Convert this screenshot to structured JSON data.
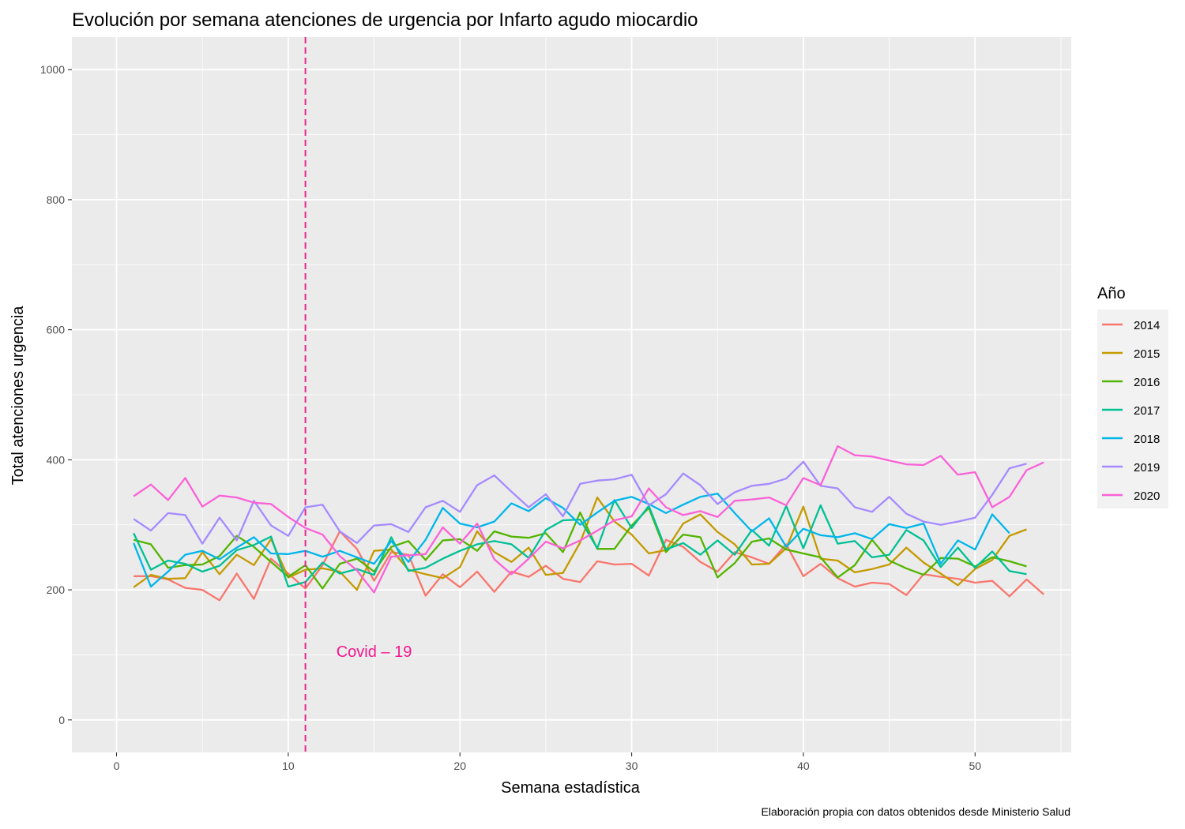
{
  "chart_data": {
    "type": "line",
    "title": "Evolución por semana atenciones de urgencia por Infarto agudo miocardio",
    "xlabel": "Semana estadística",
    "ylabel": "Total atenciones urgencia",
    "caption": "Elaboración propia con datos obtenidos desde Ministerio Salud",
    "xlim": [
      -2.6,
      55.6
    ],
    "ylim": [
      -50,
      1050
    ],
    "x_ticks": [
      0,
      10,
      20,
      30,
      40,
      50
    ],
    "y_ticks": [
      0,
      200,
      400,
      600,
      800,
      1000
    ],
    "grid": true,
    "legend_title": "Año",
    "legend_position": "right",
    "vline": {
      "x": 11,
      "color": "#e7298a",
      "style": "dashed"
    },
    "annotation": {
      "text": "Covid – 19",
      "x": 15,
      "y": 97,
      "color": "#f2178d"
    },
    "series": [
      {
        "name": "2014",
        "color": "#f8766d",
        "values": [
          221,
          221,
          216,
          203,
          200,
          184,
          225,
          186,
          248,
          225,
          202,
          238,
          290,
          263,
          214,
          258,
          254,
          191,
          224,
          204,
          228,
          197,
          228,
          220,
          237,
          217,
          212,
          244,
          239,
          240,
          222,
          277,
          266,
          243,
          228,
          258,
          250,
          240,
          270,
          221,
          240,
          218,
          205,
          211,
          209,
          192,
          224,
          220,
          217,
          211,
          214,
          190,
          216,
          193
        ]
      },
      {
        "name": "2015",
        "color": "#c49a00",
        "values": [
          204,
          223,
          217,
          218,
          258,
          224,
          254,
          238,
          278,
          219,
          231,
          233,
          228,
          200,
          260,
          262,
          231,
          224,
          218,
          235,
          290,
          258,
          243,
          265,
          223,
          226,
          273,
          342,
          305,
          285,
          256,
          261,
          302,
          316,
          289,
          270,
          239,
          240,
          264,
          328,
          248,
          245,
          227,
          232,
          239,
          265,
          242,
          225,
          207,
          232,
          246,
          283,
          293
        ]
      },
      {
        "name": "2016",
        "color": "#53b400",
        "values": [
          277,
          270,
          234,
          238,
          239,
          252,
          283,
          266,
          243,
          220,
          238,
          202,
          240,
          248,
          228,
          266,
          275,
          246,
          276,
          278,
          260,
          290,
          282,
          280,
          287,
          258,
          319,
          263,
          263,
          299,
          326,
          258,
          285,
          281,
          219,
          241,
          274,
          279,
          262,
          256,
          250,
          219,
          238,
          277,
          245,
          233,
          223,
          249,
          248,
          236,
          250,
          244,
          236
        ]
      },
      {
        "name": "2017",
        "color": "#00c094",
        "values": [
          287,
          231,
          245,
          240,
          228,
          237,
          261,
          269,
          282,
          205,
          212,
          242,
          225,
          232,
          223,
          281,
          229,
          234,
          248,
          260,
          270,
          275,
          270,
          249,
          292,
          307,
          308,
          264,
          338,
          295,
          329,
          262,
          272,
          254,
          276,
          254,
          292,
          268,
          329,
          264,
          330,
          271,
          275,
          250,
          254,
          292,
          276,
          235,
          265,
          234,
          259,
          229,
          224
        ]
      },
      {
        "name": "2018",
        "color": "#00b6eb",
        "values": [
          272,
          205,
          228,
          254,
          260,
          247,
          265,
          281,
          256,
          255,
          260,
          251,
          260,
          250,
          240,
          275,
          243,
          277,
          326,
          302,
          296,
          305,
          333,
          321,
          341,
          326,
          300,
          319,
          337,
          343,
          332,
          318,
          331,
          343,
          348,
          318,
          290,
          310,
          266,
          294,
          284,
          281,
          287,
          278,
          301,
          295,
          302,
          240,
          276,
          262,
          316,
          287
        ]
      },
      {
        "name": "2019",
        "color": "#a58aff",
        "values": [
          309,
          291,
          318,
          315,
          271,
          311,
          276,
          337,
          299,
          283,
          327,
          331,
          290,
          272,
          299,
          301,
          289,
          327,
          337,
          320,
          361,
          376,
          351,
          327,
          347,
          313,
          363,
          368,
          370,
          377,
          330,
          347,
          379,
          361,
          332,
          350,
          360,
          363,
          371,
          397,
          360,
          356,
          327,
          320,
          343,
          317,
          305,
          300,
          305,
          311,
          346,
          387,
          394
        ]
      },
      {
        "name": "2020",
        "color": "#fb61d7",
        "values": [
          344,
          362,
          338,
          372,
          328,
          345,
          342,
          334,
          332,
          312,
          295,
          285,
          252,
          230,
          196,
          251,
          253,
          255,
          296,
          271,
          302,
          247,
          224,
          248,
          274,
          264,
          276,
          291,
          307,
          313,
          356,
          327,
          315,
          321,
          312,
          337,
          339,
          342,
          330,
          372,
          361,
          421,
          407,
          405,
          399,
          393,
          392,
          406,
          377,
          381,
          327,
          343,
          384,
          396
        ]
      }
    ]
  }
}
